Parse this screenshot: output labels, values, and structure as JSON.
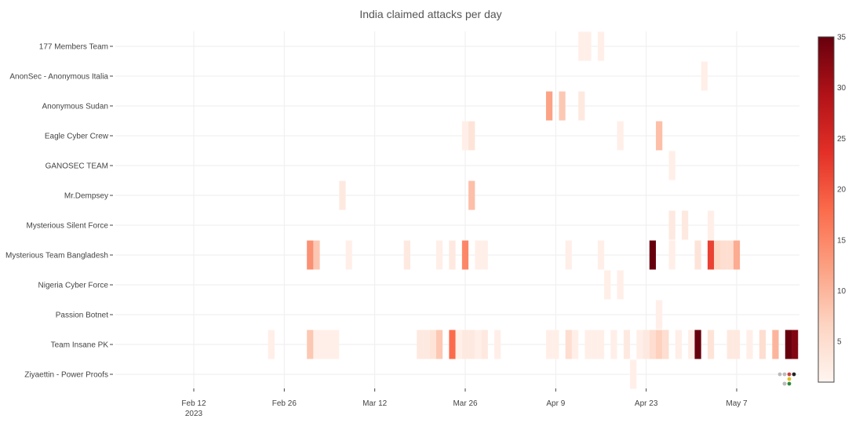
{
  "chart_data": {
    "type": "heatmap",
    "title": "India claimed attacks per day",
    "groups": [
      "177 Members Team",
      "AnonSec - Anonymous Italia",
      "Anonymous Sudan",
      "Eagle Cyber Crew",
      "GANOSEC TEAM",
      "Mr.Dempsey",
      "Mysterious Silent Force",
      "Mysterious Team Bangladesh",
      "Nigeria Cyber Force",
      "Passion Botnet",
      "Team Insane PK",
      "Ziyaettin - Power Proofs"
    ],
    "x_ticks": [
      {
        "date": "2023-02-12",
        "label": "Feb 12",
        "sublabel": "2023"
      },
      {
        "date": "2023-02-26",
        "label": "Feb 26",
        "sublabel": ""
      },
      {
        "date": "2023-03-12",
        "label": "Mar 12",
        "sublabel": ""
      },
      {
        "date": "2023-03-26",
        "label": "Mar 26",
        "sublabel": ""
      },
      {
        "date": "2023-04-09",
        "label": "Apr 9",
        "sublabel": ""
      },
      {
        "date": "2023-04-23",
        "label": "Apr 23",
        "sublabel": ""
      },
      {
        "date": "2023-05-07",
        "label": "May 7",
        "sublabel": ""
      }
    ],
    "x_range": [
      "2023-02-01",
      "2023-05-17"
    ],
    "colorbar": {
      "min": 1,
      "max": 35,
      "ticks": [
        5,
        10,
        15,
        20,
        25,
        30,
        35
      ],
      "colors": [
        "#fff5f0",
        "#fdd4c2",
        "#fca082",
        "#fb6b4b",
        "#e32f27",
        "#b11218",
        "#67000d"
      ]
    },
    "cells": [
      {
        "group": "177 Members Team",
        "date": "2023-04-13",
        "value": 2
      },
      {
        "group": "177 Members Team",
        "date": "2023-04-14",
        "value": 2
      },
      {
        "group": "177 Members Team",
        "date": "2023-04-16",
        "value": 2
      },
      {
        "group": "AnonSec - Anonymous Italia",
        "date": "2023-05-02",
        "value": 2
      },
      {
        "group": "Anonymous Sudan",
        "date": "2023-04-08",
        "value": 12
      },
      {
        "group": "Anonymous Sudan",
        "date": "2023-04-10",
        "value": 8
      },
      {
        "group": "Anonymous Sudan",
        "date": "2023-04-13",
        "value": 3
      },
      {
        "group": "Eagle Cyber Crew",
        "date": "2023-03-26",
        "value": 2
      },
      {
        "group": "Eagle Cyber Crew",
        "date": "2023-03-27",
        "value": 4
      },
      {
        "group": "Eagle Cyber Crew",
        "date": "2023-04-19",
        "value": 2
      },
      {
        "group": "Eagle Cyber Crew",
        "date": "2023-04-25",
        "value": 9
      },
      {
        "group": "GANOSEC TEAM",
        "date": "2023-04-27",
        "value": 2
      },
      {
        "group": "Mr.Dempsey",
        "date": "2023-03-07",
        "value": 3
      },
      {
        "group": "Mr.Dempsey",
        "date": "2023-03-27",
        "value": 9
      },
      {
        "group": "Mysterious Silent Force",
        "date": "2023-04-27",
        "value": 3
      },
      {
        "group": "Mysterious Silent Force",
        "date": "2023-04-29",
        "value": 3
      },
      {
        "group": "Mysterious Silent Force",
        "date": "2023-05-03",
        "value": 2
      },
      {
        "group": "Mysterious Team Bangladesh",
        "date": "2023-03-02",
        "value": 14
      },
      {
        "group": "Mysterious Team Bangladesh",
        "date": "2023-03-03",
        "value": 8
      },
      {
        "group": "Mysterious Team Bangladesh",
        "date": "2023-03-08",
        "value": 2
      },
      {
        "group": "Mysterious Team Bangladesh",
        "date": "2023-03-17",
        "value": 3
      },
      {
        "group": "Mysterious Team Bangladesh",
        "date": "2023-03-22",
        "value": 2
      },
      {
        "group": "Mysterious Team Bangladesh",
        "date": "2023-03-24",
        "value": 3
      },
      {
        "group": "Mysterious Team Bangladesh",
        "date": "2023-03-26",
        "value": 15
      },
      {
        "group": "Mysterious Team Bangladesh",
        "date": "2023-03-28",
        "value": 2
      },
      {
        "group": "Mysterious Team Bangladesh",
        "date": "2023-03-29",
        "value": 2
      },
      {
        "group": "Mysterious Team Bangladesh",
        "date": "2023-04-11",
        "value": 2
      },
      {
        "group": "Mysterious Team Bangladesh",
        "date": "2023-04-16",
        "value": 2
      },
      {
        "group": "Mysterious Team Bangladesh",
        "date": "2023-04-24",
        "value": 35
      },
      {
        "group": "Mysterious Team Bangladesh",
        "date": "2023-04-27",
        "value": 2
      },
      {
        "group": "Mysterious Team Bangladesh",
        "date": "2023-05-01",
        "value": 4
      },
      {
        "group": "Mysterious Team Bangladesh",
        "date": "2023-05-03",
        "value": 22
      },
      {
        "group": "Mysterious Team Bangladesh",
        "date": "2023-05-04",
        "value": 6
      },
      {
        "group": "Mysterious Team Bangladesh",
        "date": "2023-05-05",
        "value": 5
      },
      {
        "group": "Mysterious Team Bangladesh",
        "date": "2023-05-06",
        "value": 5
      },
      {
        "group": "Mysterious Team Bangladesh",
        "date": "2023-05-07",
        "value": 11
      },
      {
        "group": "Nigeria Cyber Force",
        "date": "2023-04-17",
        "value": 2
      },
      {
        "group": "Nigeria Cyber Force",
        "date": "2023-04-19",
        "value": 2
      },
      {
        "group": "Passion Botnet",
        "date": "2023-04-25",
        "value": 2
      },
      {
        "group": "Team Insane PK",
        "date": "2023-02-24",
        "value": 2
      },
      {
        "group": "Team Insane PK",
        "date": "2023-03-02",
        "value": 8
      },
      {
        "group": "Team Insane PK",
        "date": "2023-03-03",
        "value": 2
      },
      {
        "group": "Team Insane PK",
        "date": "2023-03-04",
        "value": 2
      },
      {
        "group": "Team Insane PK",
        "date": "2023-03-05",
        "value": 2
      },
      {
        "group": "Team Insane PK",
        "date": "2023-03-06",
        "value": 2
      },
      {
        "group": "Team Insane PK",
        "date": "2023-03-19",
        "value": 3
      },
      {
        "group": "Team Insane PK",
        "date": "2023-03-20",
        "value": 3
      },
      {
        "group": "Team Insane PK",
        "date": "2023-03-21",
        "value": 4
      },
      {
        "group": "Team Insane PK",
        "date": "2023-03-22",
        "value": 8
      },
      {
        "group": "Team Insane PK",
        "date": "2023-03-24",
        "value": 18
      },
      {
        "group": "Team Insane PK",
        "date": "2023-03-25",
        "value": 2
      },
      {
        "group": "Team Insane PK",
        "date": "2023-03-26",
        "value": 3
      },
      {
        "group": "Team Insane PK",
        "date": "2023-03-27",
        "value": 3
      },
      {
        "group": "Team Insane PK",
        "date": "2023-03-28",
        "value": 2
      },
      {
        "group": "Team Insane PK",
        "date": "2023-03-29",
        "value": 3
      },
      {
        "group": "Team Insane PK",
        "date": "2023-03-31",
        "value": 2
      },
      {
        "group": "Team Insane PK",
        "date": "2023-04-08",
        "value": 2
      },
      {
        "group": "Team Insane PK",
        "date": "2023-04-09",
        "value": 2
      },
      {
        "group": "Team Insane PK",
        "date": "2023-04-11",
        "value": 5
      },
      {
        "group": "Team Insane PK",
        "date": "2023-04-12",
        "value": 2
      },
      {
        "group": "Team Insane PK",
        "date": "2023-04-14",
        "value": 2
      },
      {
        "group": "Team Insane PK",
        "date": "2023-04-15",
        "value": 2
      },
      {
        "group": "Team Insane PK",
        "date": "2023-04-16",
        "value": 2
      },
      {
        "group": "Team Insane PK",
        "date": "2023-04-18",
        "value": 2
      },
      {
        "group": "Team Insane PK",
        "date": "2023-04-20",
        "value": 3
      },
      {
        "group": "Team Insane PK",
        "date": "2023-04-22",
        "value": 2
      },
      {
        "group": "Team Insane PK",
        "date": "2023-04-23",
        "value": 3
      },
      {
        "group": "Team Insane PK",
        "date": "2023-04-24",
        "value": 5
      },
      {
        "group": "Team Insane PK",
        "date": "2023-04-25",
        "value": 7
      },
      {
        "group": "Team Insane PK",
        "date": "2023-04-26",
        "value": 5
      },
      {
        "group": "Team Insane PK",
        "date": "2023-04-28",
        "value": 2
      },
      {
        "group": "Team Insane PK",
        "date": "2023-04-30",
        "value": 2
      },
      {
        "group": "Team Insane PK",
        "date": "2023-05-01",
        "value": 35
      },
      {
        "group": "Team Insane PK",
        "date": "2023-05-03",
        "value": 4
      },
      {
        "group": "Team Insane PK",
        "date": "2023-05-06",
        "value": 3
      },
      {
        "group": "Team Insane PK",
        "date": "2023-05-07",
        "value": 3
      },
      {
        "group": "Team Insane PK",
        "date": "2023-05-09",
        "value": 2
      },
      {
        "group": "Team Insane PK",
        "date": "2023-05-11",
        "value": 5
      },
      {
        "group": "Team Insane PK",
        "date": "2023-05-13",
        "value": 10
      },
      {
        "group": "Team Insane PK",
        "date": "2023-05-15",
        "value": 35
      },
      {
        "group": "Team Insane PK",
        "date": "2023-05-16",
        "value": 33
      },
      {
        "group": "Ziyaettin - Power Proofs",
        "date": "2023-04-21",
        "value": 2
      }
    ],
    "grid": true,
    "legend": "colorbar-right"
  },
  "toolbar": {
    "dots": [
      "#bbbbbb",
      "#bbbbbb",
      "#c94040",
      "#222222",
      "#e0c020",
      "#bbbbbb",
      "#bbbbbb",
      "#2a8a3a"
    ]
  }
}
